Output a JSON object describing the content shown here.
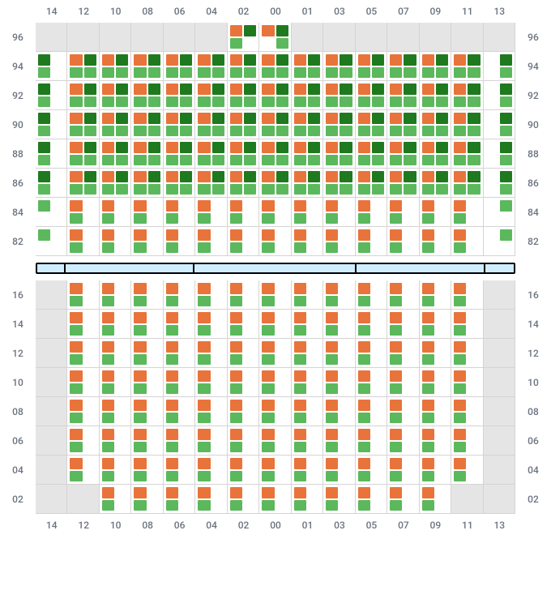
{
  "colors": {
    "orange": "#e8743b",
    "dgreen": "#1f7a1f",
    "lgreen": "#5cb85c",
    "inactive_bg": "#e5e5e5",
    "active_bg": "#ffffff",
    "grid_line": "#d4d4d4",
    "sep_fill": "#cfeeff",
    "sep_border": "#000000",
    "text": "#6b7280"
  },
  "columns": [
    "14",
    "12",
    "10",
    "08",
    "06",
    "04",
    "02",
    "00",
    "01",
    "03",
    "05",
    "07",
    "09",
    "11",
    "13"
  ],
  "upper": {
    "rows": [
      "96",
      "94",
      "92",
      "90",
      "88",
      "86",
      "84",
      "82"
    ],
    "cells": [
      [
        null,
        null,
        null,
        null,
        null,
        null,
        [
          "o",
          "d",
          "l",
          null
        ],
        [
          "o",
          "d",
          null,
          "l"
        ],
        null,
        null,
        null,
        null,
        null,
        null,
        null
      ],
      [
        [
          "d",
          null,
          "l",
          null
        ],
        [
          "o",
          "d",
          "l",
          "l"
        ],
        [
          "o",
          "d",
          "l",
          "l"
        ],
        [
          "o",
          "d",
          "l",
          "l"
        ],
        [
          "o",
          "d",
          "l",
          "l"
        ],
        [
          "o",
          "d",
          "l",
          "l"
        ],
        [
          "o",
          "d",
          "l",
          "l"
        ],
        [
          "o",
          "d",
          "l",
          "l"
        ],
        [
          "o",
          "d",
          "l",
          "l"
        ],
        [
          "o",
          "d",
          "l",
          "l"
        ],
        [
          "o",
          "d",
          "l",
          "l"
        ],
        [
          "o",
          "d",
          "l",
          "l"
        ],
        [
          "o",
          "d",
          "l",
          "l"
        ],
        [
          "o",
          "d",
          "l",
          "l"
        ],
        [
          null,
          "d",
          null,
          "l"
        ]
      ],
      [
        [
          "d",
          null,
          "l",
          null
        ],
        [
          "o",
          "d",
          "l",
          "l"
        ],
        [
          "o",
          "d",
          "l",
          "l"
        ],
        [
          "o",
          "d",
          "l",
          "l"
        ],
        [
          "o",
          "d",
          "l",
          "l"
        ],
        [
          "o",
          "d",
          "l",
          "l"
        ],
        [
          "o",
          "d",
          "l",
          "l"
        ],
        [
          "o",
          "d",
          "l",
          "l"
        ],
        [
          "o",
          "d",
          "l",
          "l"
        ],
        [
          "o",
          "d",
          "l",
          "l"
        ],
        [
          "o",
          "d",
          "l",
          "l"
        ],
        [
          "o",
          "d",
          "l",
          "l"
        ],
        [
          "o",
          "d",
          "l",
          "l"
        ],
        [
          "o",
          "d",
          "l",
          "l"
        ],
        [
          null,
          "d",
          null,
          "l"
        ]
      ],
      [
        [
          "d",
          null,
          "l",
          null
        ],
        [
          "o",
          "d",
          "l",
          "l"
        ],
        [
          "o",
          "d",
          "l",
          "l"
        ],
        [
          "o",
          "d",
          "l",
          "l"
        ],
        [
          "o",
          "d",
          "l",
          "l"
        ],
        [
          "o",
          "d",
          "l",
          "l"
        ],
        [
          "o",
          "d",
          "l",
          "l"
        ],
        [
          "o",
          "d",
          "l",
          "l"
        ],
        [
          "o",
          "d",
          "l",
          "l"
        ],
        [
          "o",
          "d",
          "l",
          "l"
        ],
        [
          "o",
          "d",
          "l",
          "l"
        ],
        [
          "o",
          "d",
          "l",
          "l"
        ],
        [
          "o",
          "d",
          "l",
          "l"
        ],
        [
          "o",
          "d",
          "l",
          "l"
        ],
        [
          null,
          "d",
          null,
          "l"
        ]
      ],
      [
        [
          "d",
          null,
          "l",
          null
        ],
        [
          "o",
          "d",
          "l",
          "l"
        ],
        [
          "o",
          "d",
          "l",
          "l"
        ],
        [
          "o",
          "d",
          "l",
          "l"
        ],
        [
          "o",
          "d",
          "l",
          "l"
        ],
        [
          "o",
          "d",
          "l",
          "l"
        ],
        [
          "o",
          "d",
          "l",
          "l"
        ],
        [
          "o",
          "d",
          "l",
          "l"
        ],
        [
          "o",
          "d",
          "l",
          "l"
        ],
        [
          "o",
          "d",
          "l",
          "l"
        ],
        [
          "o",
          "d",
          "l",
          "l"
        ],
        [
          "o",
          "d",
          "l",
          "l"
        ],
        [
          "o",
          "d",
          "l",
          "l"
        ],
        [
          "o",
          "d",
          "l",
          "l"
        ],
        [
          null,
          "d",
          null,
          "l"
        ]
      ],
      [
        [
          "d",
          null,
          "l",
          null
        ],
        [
          "o",
          "d",
          "l",
          "l"
        ],
        [
          "o",
          "d",
          "l",
          "l"
        ],
        [
          "o",
          "d",
          "l",
          "l"
        ],
        [
          "o",
          "d",
          "l",
          "l"
        ],
        [
          "o",
          "d",
          "l",
          "l"
        ],
        [
          "o",
          "d",
          "l",
          "l"
        ],
        [
          "o",
          "d",
          "l",
          "l"
        ],
        [
          "o",
          "d",
          "l",
          "l"
        ],
        [
          "o",
          "d",
          "l",
          "l"
        ],
        [
          "o",
          "d",
          "l",
          "l"
        ],
        [
          "o",
          "d",
          "l",
          "l"
        ],
        [
          "o",
          "d",
          "l",
          "l"
        ],
        [
          "o",
          "d",
          "l",
          "l"
        ],
        [
          null,
          "d",
          null,
          "l"
        ]
      ],
      [
        [
          "l",
          null,
          null,
          null
        ],
        [
          "o",
          null,
          "l",
          null
        ],
        [
          "o",
          null,
          "l",
          null
        ],
        [
          "o",
          null,
          "l",
          null
        ],
        [
          "o",
          null,
          "l",
          null
        ],
        [
          "o",
          null,
          "l",
          null
        ],
        [
          "o",
          null,
          "l",
          null
        ],
        [
          "o",
          null,
          "l",
          null
        ],
        [
          "o",
          null,
          "l",
          null
        ],
        [
          "o",
          null,
          "l",
          null
        ],
        [
          "o",
          null,
          "l",
          null
        ],
        [
          "o",
          null,
          "l",
          null
        ],
        [
          "o",
          null,
          "l",
          null
        ],
        [
          "o",
          null,
          "l",
          null
        ],
        [
          null,
          "l",
          null,
          null
        ]
      ],
      [
        [
          "l",
          null,
          null,
          null
        ],
        [
          "o",
          null,
          "l",
          null
        ],
        [
          "o",
          null,
          "l",
          null
        ],
        [
          "o",
          null,
          "l",
          null
        ],
        [
          "o",
          null,
          "l",
          null
        ],
        [
          "o",
          null,
          "l",
          null
        ],
        [
          "o",
          null,
          "l",
          null
        ],
        [
          "o",
          null,
          "l",
          null
        ],
        [
          "o",
          null,
          "l",
          null
        ],
        [
          "o",
          null,
          "l",
          null
        ],
        [
          "o",
          null,
          "l",
          null
        ],
        [
          "o",
          null,
          "l",
          null
        ],
        [
          "o",
          null,
          "l",
          null
        ],
        [
          "o",
          null,
          "l",
          null
        ],
        [
          null,
          "l",
          null,
          null
        ]
      ]
    ]
  },
  "lower": {
    "rows": [
      "16",
      "14",
      "12",
      "10",
      "08",
      "06",
      "04",
      "02"
    ],
    "cells": [
      [
        null,
        [
          "o",
          null,
          "l",
          null
        ],
        [
          "o",
          null,
          "l",
          null
        ],
        [
          "o",
          null,
          "l",
          null
        ],
        [
          "o",
          null,
          "l",
          null
        ],
        [
          "o",
          null,
          "l",
          null
        ],
        [
          "o",
          null,
          "l",
          null
        ],
        [
          "o",
          null,
          "l",
          null
        ],
        [
          "o",
          null,
          "l",
          null
        ],
        [
          "o",
          null,
          "l",
          null
        ],
        [
          "o",
          null,
          "l",
          null
        ],
        [
          "o",
          null,
          "l",
          null
        ],
        [
          "o",
          null,
          "l",
          null
        ],
        [
          "o",
          null,
          "l",
          null
        ],
        null
      ],
      [
        null,
        [
          "o",
          null,
          "l",
          null
        ],
        [
          "o",
          null,
          "l",
          null
        ],
        [
          "o",
          null,
          "l",
          null
        ],
        [
          "o",
          null,
          "l",
          null
        ],
        [
          "o",
          null,
          "l",
          null
        ],
        [
          "o",
          null,
          "l",
          null
        ],
        [
          "o",
          null,
          "l",
          null
        ],
        [
          "o",
          null,
          "l",
          null
        ],
        [
          "o",
          null,
          "l",
          null
        ],
        [
          "o",
          null,
          "l",
          null
        ],
        [
          "o",
          null,
          "l",
          null
        ],
        [
          "o",
          null,
          "l",
          null
        ],
        [
          "o",
          null,
          "l",
          null
        ],
        null
      ],
      [
        null,
        [
          "o",
          null,
          "l",
          null
        ],
        [
          "o",
          null,
          "l",
          null
        ],
        [
          "o",
          null,
          "l",
          null
        ],
        [
          "o",
          null,
          "l",
          null
        ],
        [
          "o",
          null,
          "l",
          null
        ],
        [
          "o",
          null,
          "l",
          null
        ],
        [
          "o",
          null,
          "l",
          null
        ],
        [
          "o",
          null,
          "l",
          null
        ],
        [
          "o",
          null,
          "l",
          null
        ],
        [
          "o",
          null,
          "l",
          null
        ],
        [
          "o",
          null,
          "l",
          null
        ],
        [
          "o",
          null,
          "l",
          null
        ],
        [
          "o",
          null,
          "l",
          null
        ],
        null
      ],
      [
        null,
        [
          "o",
          null,
          "l",
          null
        ],
        [
          "o",
          null,
          "l",
          null
        ],
        [
          "o",
          null,
          "l",
          null
        ],
        [
          "o",
          null,
          "l",
          null
        ],
        [
          "o",
          null,
          "l",
          null
        ],
        [
          "o",
          null,
          "l",
          null
        ],
        [
          "o",
          null,
          "l",
          null
        ],
        [
          "o",
          null,
          "l",
          null
        ],
        [
          "o",
          null,
          "l",
          null
        ],
        [
          "o",
          null,
          "l",
          null
        ],
        [
          "o",
          null,
          "l",
          null
        ],
        [
          "o",
          null,
          "l",
          null
        ],
        [
          "o",
          null,
          "l",
          null
        ],
        null
      ],
      [
        null,
        [
          "o",
          null,
          "l",
          null
        ],
        [
          "o",
          null,
          "l",
          null
        ],
        [
          "o",
          null,
          "l",
          null
        ],
        [
          "o",
          null,
          "l",
          null
        ],
        [
          "o",
          null,
          "l",
          null
        ],
        [
          "o",
          null,
          "l",
          null
        ],
        [
          "o",
          null,
          "l",
          null
        ],
        [
          "o",
          null,
          "l",
          null
        ],
        [
          "o",
          null,
          "l",
          null
        ],
        [
          "o",
          null,
          "l",
          null
        ],
        [
          "o",
          null,
          "l",
          null
        ],
        [
          "o",
          null,
          "l",
          null
        ],
        [
          "o",
          null,
          "l",
          null
        ],
        null
      ],
      [
        null,
        [
          "o",
          null,
          "l",
          null
        ],
        [
          "o",
          null,
          "l",
          null
        ],
        [
          "o",
          null,
          "l",
          null
        ],
        [
          "o",
          null,
          "l",
          null
        ],
        [
          "o",
          null,
          "l",
          null
        ],
        [
          "o",
          null,
          "l",
          null
        ],
        [
          "o",
          null,
          "l",
          null
        ],
        [
          "o",
          null,
          "l",
          null
        ],
        [
          "o",
          null,
          "l",
          null
        ],
        [
          "o",
          null,
          "l",
          null
        ],
        [
          "o",
          null,
          "l",
          null
        ],
        [
          "o",
          null,
          "l",
          null
        ],
        [
          "o",
          null,
          "l",
          null
        ],
        null
      ],
      [
        null,
        [
          "o",
          null,
          "l",
          null
        ],
        [
          "o",
          null,
          "l",
          null
        ],
        [
          "o",
          null,
          "l",
          null
        ],
        [
          "o",
          null,
          "l",
          null
        ],
        [
          "o",
          null,
          "l",
          null
        ],
        [
          "o",
          null,
          "l",
          null
        ],
        [
          "o",
          null,
          "l",
          null
        ],
        [
          "o",
          null,
          "l",
          null
        ],
        [
          "o",
          null,
          "l",
          null
        ],
        [
          "o",
          null,
          "l",
          null
        ],
        [
          "o",
          null,
          "l",
          null
        ],
        [
          "o",
          null,
          "l",
          null
        ],
        [
          "o",
          null,
          "l",
          null
        ],
        null
      ],
      [
        null,
        null,
        [
          "o",
          null,
          "l",
          null
        ],
        [
          "o",
          null,
          "l",
          null
        ],
        [
          "o",
          null,
          "l",
          null
        ],
        [
          "o",
          null,
          "l",
          null
        ],
        [
          "o",
          null,
          "l",
          null
        ],
        [
          "o",
          null,
          "l",
          null
        ],
        [
          "o",
          null,
          "l",
          null
        ],
        [
          "o",
          null,
          "l",
          null
        ],
        [
          "o",
          null,
          "l",
          null
        ],
        [
          "o",
          null,
          "l",
          null
        ],
        [
          "o",
          null,
          "l",
          null
        ],
        null,
        null
      ]
    ]
  },
  "separator_segments_pct": [
    6,
    27,
    34,
    27,
    6
  ]
}
